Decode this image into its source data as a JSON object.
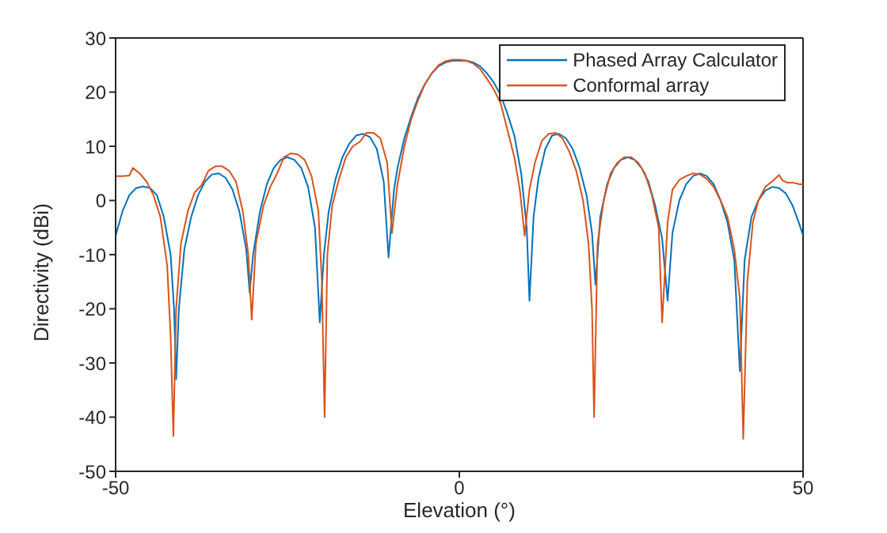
{
  "chart_data": {
    "type": "line",
    "xlabel": "Elevation (°)",
    "ylabel": "Directivity (dBi)",
    "xlim": [
      -50,
      50
    ],
    "xticks": [
      -50,
      0,
      50
    ],
    "ylim": [
      -50,
      30
    ],
    "yticks": [
      -50,
      -40,
      -30,
      -20,
      -10,
      0,
      10,
      20,
      30
    ],
    "grid": false,
    "legend": "top right",
    "marker": "none",
    "line_style": "solid",
    "series": [
      {
        "name": "Phased Array Calculator",
        "color": "#0072bd",
        "x": [
          -50,
          -49,
          -48,
          -47,
          -46,
          -45,
          -44,
          -43,
          -42,
          -41.5,
          -41.2,
          -40.8,
          -40,
          -39,
          -38,
          -37,
          -36,
          -35,
          -34,
          -33,
          -32,
          -31,
          -30.5,
          -30,
          -29,
          -28,
          -27,
          -26,
          -25,
          -24,
          -23,
          -22,
          -21,
          -20.3,
          -19.7,
          -19,
          -18,
          -17,
          -16,
          -15,
          -14,
          -13,
          -12,
          -11,
          -10.3,
          -9.5,
          -9,
          -8,
          -7,
          -6,
          -5,
          -4,
          -3,
          -2,
          -1,
          0,
          1,
          2,
          3,
          4,
          5,
          6,
          7,
          8,
          9,
          9.8,
          10.2,
          10.8,
          11.5,
          12.5,
          13.5,
          14.5,
          15.5,
          16.5,
          17.5,
          18.5,
          19.3,
          19.8,
          20.5,
          21.5,
          22.5,
          23.5,
          24.5,
          25.5,
          26.5,
          27.5,
          28.5,
          29.5,
          30.3,
          31,
          32,
          33,
          34,
          35,
          36,
          37,
          38,
          39,
          40,
          40.8,
          41.5,
          42.5,
          43.5,
          44.5,
          45.5,
          46.5,
          47.5,
          48.5,
          49.5,
          50
        ],
        "values": [
          -6.5,
          -2,
          1,
          2.3,
          2.6,
          2.3,
          1,
          -3,
          -10,
          -20,
          -33,
          -20,
          -9,
          -3,
          1,
          3.5,
          4.8,
          5,
          4.2,
          2,
          -2,
          -9,
          -17,
          -10,
          -2,
          3,
          6,
          7.5,
          8,
          7.5,
          6,
          2.5,
          -5,
          -22.5,
          -10,
          -2,
          4,
          8,
          10.5,
          12,
          12.3,
          11.7,
          9.5,
          3.5,
          -10.5,
          2,
          6,
          11.5,
          15.5,
          19,
          21.5,
          23.5,
          24.8,
          25.5,
          25.8,
          25.8,
          25.8,
          25.5,
          24.8,
          23.5,
          21.8,
          19.5,
          16,
          12,
          5,
          -5,
          -18.5,
          -3,
          4,
          9.5,
          12,
          12.3,
          11.5,
          9.5,
          6,
          1,
          -6,
          -15.5,
          -3,
          3,
          6,
          7.5,
          8,
          7.5,
          6,
          3.5,
          -1,
          -7,
          -18.5,
          -6,
          0,
          3,
          4.5,
          5,
          4.5,
          3,
          0,
          -4,
          -11,
          -31.5,
          -11,
          -3,
          0,
          1.8,
          2.5,
          2.3,
          1.3,
          -1,
          -4.5,
          -6.5
        ]
      },
      {
        "name": "Conformal array",
        "color": "#d95319",
        "x": [
          -50,
          -49,
          -48,
          -47.5,
          -46.5,
          -45.5,
          -44.5,
          -43.5,
          -42.5,
          -42,
          -41.6,
          -41.2,
          -40.5,
          -39.5,
          -38.5,
          -37.5,
          -36.5,
          -35.5,
          -34.5,
          -33.5,
          -32.5,
          -31.5,
          -30.7,
          -30.2,
          -29.6,
          -28.5,
          -27.5,
          -26.5,
          -25.5,
          -24.5,
          -23.5,
          -22.5,
          -21.5,
          -20.5,
          -20,
          -19.6,
          -19.2,
          -18.5,
          -17.5,
          -16.5,
          -15.5,
          -14.5,
          -13.5,
          -12.5,
          -11.5,
          -10.5,
          -9.8,
          -9,
          -8,
          -7,
          -6,
          -5,
          -4,
          -3,
          -2,
          -1,
          0,
          1,
          2,
          3,
          4,
          5,
          6,
          7,
          8,
          8.8,
          9.5,
          10.2,
          11,
          12,
          13,
          14,
          15,
          16,
          17,
          18,
          18.8,
          19.3,
          19.6,
          20.1,
          21,
          22,
          23,
          24,
          25,
          26,
          27,
          28,
          29,
          29.5,
          30.3,
          31,
          32,
          33,
          34,
          35,
          36,
          37,
          38,
          39,
          40,
          40.8,
          41.3,
          41.9,
          42.7,
          43.5,
          44.5,
          45.5,
          46.5,
          47,
          47.7,
          48.5,
          49.5,
          50
        ],
        "values": [
          4.5,
          4.5,
          4.6,
          6,
          5,
          3.5,
          1,
          -3,
          -12,
          -25,
          -43.5,
          -20,
          -8,
          -2,
          1.5,
          2.8,
          5.5,
          6.3,
          6.3,
          5.5,
          3.5,
          -2,
          -10,
          -22,
          -8,
          -1,
          2.5,
          5,
          8,
          8.7,
          8.5,
          7.5,
          4.5,
          -2,
          -15,
          -40,
          -10,
          -1,
          4,
          8,
          10,
          10.8,
          12.5,
          12.5,
          11.5,
          7,
          -6,
          3,
          10,
          15,
          18.5,
          21.5,
          23.5,
          25,
          25.7,
          26,
          26,
          25.8,
          25.3,
          24.3,
          22.5,
          20.5,
          18,
          13,
          8,
          2,
          -6.5,
          2,
          7,
          11,
          12.3,
          12.5,
          11.5,
          9,
          5.5,
          0,
          -8,
          -20,
          -40,
          -8,
          0,
          5,
          7,
          8,
          8,
          7,
          5,
          1,
          -5,
          -22.5,
          -4,
          2,
          3.8,
          4.5,
          5,
          4.8,
          4,
          2.5,
          0,
          -3,
          -9,
          -18,
          -44,
          -15,
          -4,
          0,
          2.5,
          3.5,
          4.7,
          3.7,
          3.3,
          3.3,
          3,
          3
        ]
      }
    ]
  }
}
